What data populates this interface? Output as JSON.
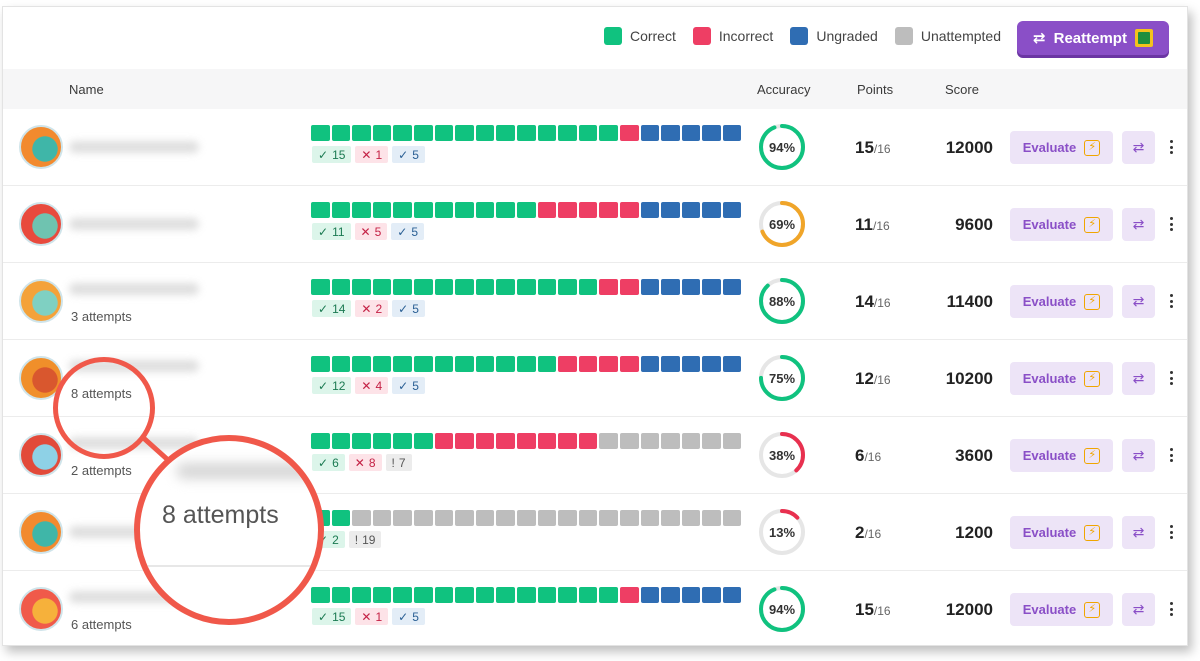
{
  "legend": [
    {
      "label": "Correct",
      "color": "#10c27f"
    },
    {
      "label": "Incorrect",
      "color": "#ee3e64"
    },
    {
      "label": "Ungraded",
      "color": "#2f6db3"
    },
    {
      "label": "Unattempted",
      "color": "#bdbdbd"
    }
  ],
  "reattempt_button": {
    "label": "Reattempt",
    "icon": "google-classroom-icon"
  },
  "columns": {
    "name": "Name",
    "accuracy": "Accuracy",
    "points": "Points",
    "score": "Score"
  },
  "colors": {
    "correct": "#10c27f",
    "incorrect": "#ee3e64",
    "ungraded": "#2f6db3",
    "unattempted": "#bdbdbd",
    "accent": "#8a4fc7",
    "ring_good": "#10c27f",
    "ring_mid": "#f0a529",
    "ring_bad": "#e8304f"
  },
  "row_actions": {
    "evaluate_label": "Evaluate"
  },
  "rows": [
    {
      "attempts": "",
      "bar": "CCCCCCCCCCCCCCCIUUUUU",
      "correct": "15",
      "incorrect": "1",
      "ungraded": "5",
      "unattempted": "",
      "accuracy": "94%",
      "accuracy_value": 0.94,
      "ring": "good",
      "points": "15",
      "points_total": "/16",
      "score": "12000",
      "avatar": "dino-orange"
    },
    {
      "attempts": "",
      "bar": "CCCCCCCCCCCIIIIIUUUUU",
      "correct": "11",
      "incorrect": "5",
      "ungraded": "5",
      "unattempted": "",
      "accuracy": "69%",
      "accuracy_value": 0.69,
      "ring": "mid",
      "points": "11",
      "points_total": "/16",
      "score": "9600",
      "avatar": "monster-red"
    },
    {
      "attempts": "3 attempts",
      "bar": "CCCCCCCCCCCCCCIIUUUUU",
      "correct": "14",
      "incorrect": "2",
      "ungraded": "5",
      "unattempted": "",
      "accuracy": "88%",
      "accuracy_value": 0.88,
      "ring": "good",
      "points": "14",
      "points_total": "/16",
      "score": "11400",
      "avatar": "dog-orange"
    },
    {
      "attempts": "8 attempts",
      "bar": "CCCCCCCCCCCCIIIIUUUUU",
      "correct": "12",
      "incorrect": "4",
      "ungraded": "5",
      "unattempted": "",
      "accuracy": "75%",
      "accuracy_value": 0.75,
      "ring": "good",
      "points": "12",
      "points_total": "/16",
      "score": "10200",
      "avatar": "sloth"
    },
    {
      "attempts": "2 attempts",
      "bar": "CCCCCCIIIIIIIINNNNNNN",
      "correct": "6",
      "incorrect": "8",
      "ungraded": "",
      "unattempted": "7",
      "accuracy": "38%",
      "accuracy_value": 0.38,
      "ring": "bad",
      "points": "6",
      "points_total": "/16",
      "score": "3600",
      "avatar": "robot-red"
    },
    {
      "attempts": "",
      "bar": "CCNNNNNNNNNNNNNNNNNNN",
      "correct": "2",
      "incorrect": "",
      "ungraded": "",
      "unattempted": "19",
      "accuracy": "13%",
      "accuracy_value": 0.13,
      "ring": "bad",
      "points": "2",
      "points_total": "/16",
      "score": "1200",
      "avatar": "dino-orange"
    },
    {
      "attempts": "6 attempts",
      "bar": "CCCCCCCCCCCCCCCIUUUUU",
      "correct": "15",
      "incorrect": "1",
      "ungraded": "5",
      "unattempted": "",
      "accuracy": "94%",
      "accuracy_value": 0.94,
      "ring": "good",
      "points": "15",
      "points_total": "/16",
      "score": "12000",
      "avatar": "cat-red"
    }
  ],
  "magnifier": {
    "zoom_text": "8 attempts"
  }
}
